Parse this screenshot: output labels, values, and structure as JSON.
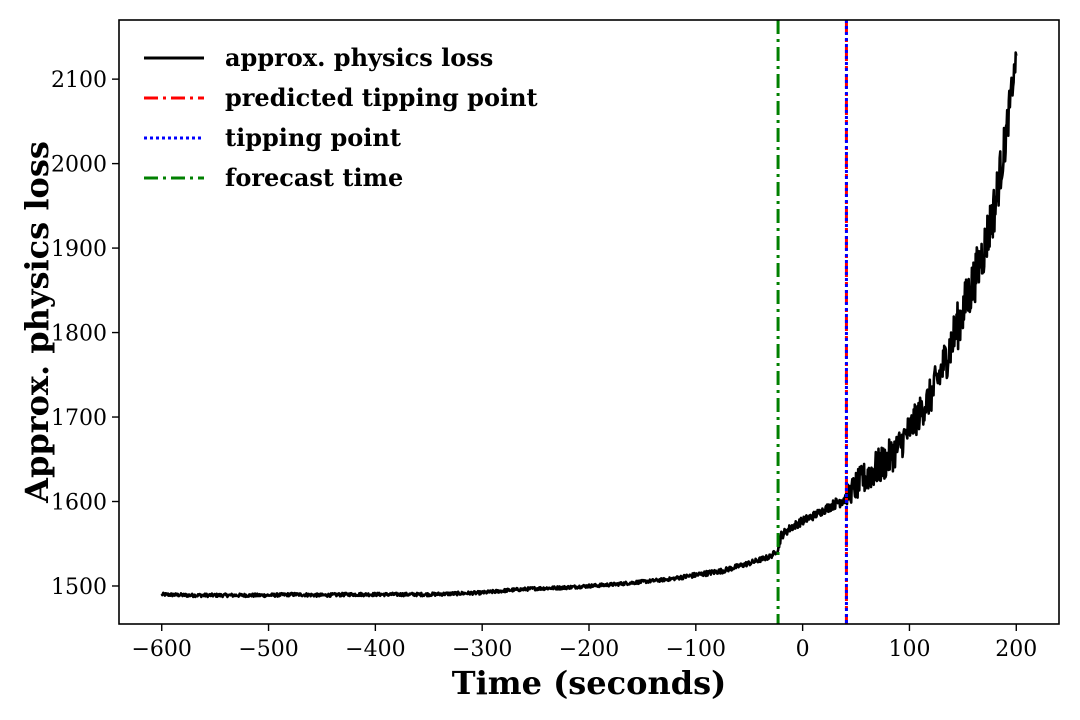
{
  "chart_data": {
    "type": "line",
    "title": "",
    "xlabel": "Time (seconds)",
    "ylabel": "Approx. physics loss",
    "xlim": [
      -640,
      240
    ],
    "ylim": [
      1455,
      2170
    ],
    "xticks": [
      -600,
      -500,
      -400,
      -300,
      -200,
      -100,
      0,
      100,
      200
    ],
    "xtick_labels": [
      "−600",
      "−500",
      "−400",
      "−300",
      "−200",
      "−100",
      "0",
      "100",
      "200"
    ],
    "yticks": [
      1500,
      1600,
      1700,
      1800,
      1900,
      2000,
      2100
    ],
    "ytick_labels": [
      "1500",
      "1600",
      "1700",
      "1800",
      "1900",
      "2000",
      "2100"
    ],
    "grid": false,
    "legend_position": "top-left",
    "series": [
      {
        "name": "approx. physics loss",
        "color": "#000000",
        "style": "solid",
        "x": [
          -600,
          -575,
          -550,
          -525,
          -500,
          -475,
          -450,
          -425,
          -400,
          -375,
          -350,
          -325,
          -300,
          -275,
          -250,
          -225,
          -200,
          -175,
          -150,
          -125,
          -100,
          -75,
          -50,
          -30,
          -23,
          -20,
          -10,
          0,
          10,
          20,
          30,
          40,
          50,
          60,
          70,
          80,
          90,
          100,
          110,
          120,
          130,
          140,
          150,
          160,
          170,
          180,
          190,
          195,
          200
        ],
        "y": [
          1490,
          1489,
          1489,
          1489,
          1489,
          1490,
          1489,
          1490,
          1490,
          1490,
          1490,
          1491,
          1492,
          1495,
          1497,
          1498,
          1500,
          1502,
          1505,
          1508,
          1513,
          1518,
          1527,
          1535,
          1543,
          1560,
          1570,
          1577,
          1583,
          1590,
          1597,
          1605,
          1618,
          1630,
          1640,
          1650,
          1665,
          1685,
          1705,
          1725,
          1755,
          1790,
          1825,
          1860,
          1900,
          1950,
          2030,
          2080,
          2125
        ],
        "noise_amplitude": [
          2,
          2,
          2,
          2,
          2,
          2,
          2,
          2,
          2,
          2,
          2,
          2,
          2,
          2,
          2,
          2,
          2,
          2,
          2,
          2,
          3,
          3,
          3,
          3,
          3,
          5,
          5,
          5,
          5,
          5,
          6,
          10,
          18,
          20,
          22,
          22,
          20,
          20,
          20,
          22,
          25,
          28,
          30,
          30,
          30,
          30,
          25,
          20,
          10
        ]
      },
      {
        "name": "predicted tipping point",
        "color": "#ff0000",
        "style": "dashdot",
        "vline_x": 41
      },
      {
        "name": "tipping point",
        "color": "#0000ff",
        "style": "dotted",
        "vline_x": 41
      },
      {
        "name": "forecast time",
        "color": "#008000",
        "style": "dashdot",
        "vline_x": -23
      }
    ]
  }
}
